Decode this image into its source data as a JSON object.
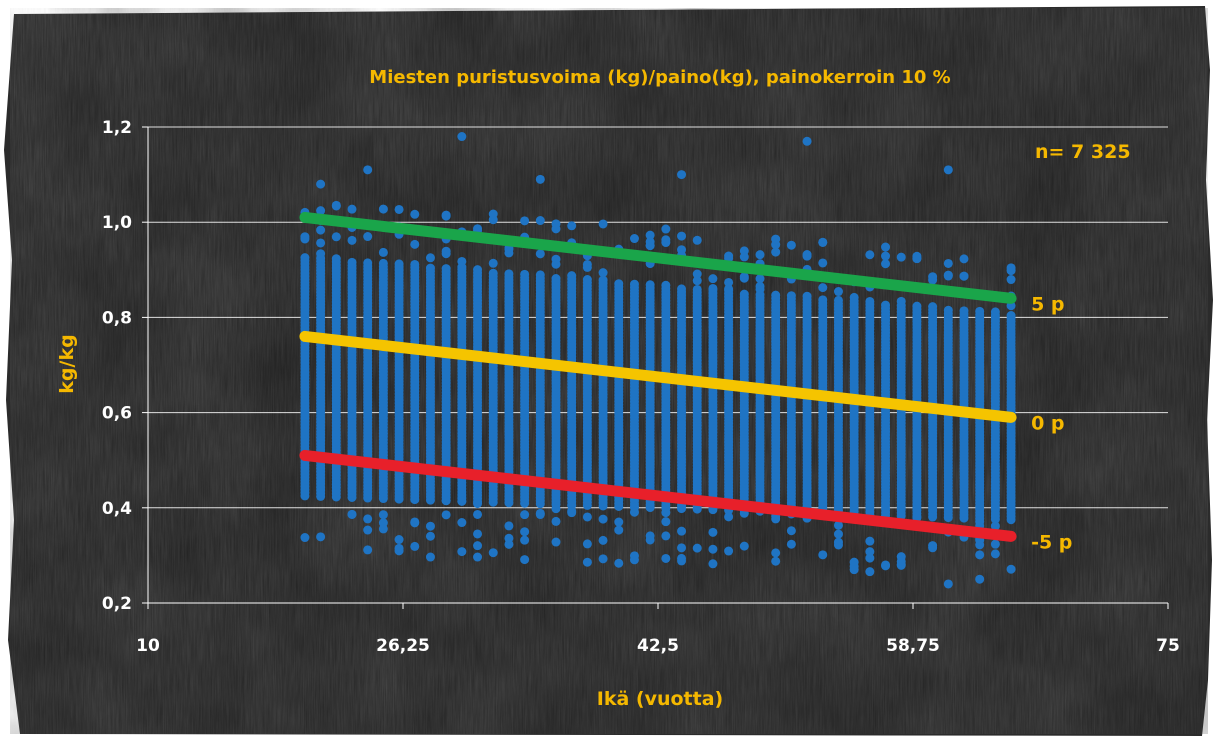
{
  "colors": {
    "background": "#2b2b2b",
    "text_accent": "#f5b800",
    "axis_tick_text": "#ffffff",
    "points": "#1f74c4",
    "line_plus5": "#1aa54a",
    "line_zero": "#f5c400",
    "line_minus5": "#e8202a",
    "grid": "#ffffff"
  },
  "chart_data": {
    "type": "scatter",
    "title": "Miesten puristusvoima (kg)/paino(kg), painokerroin 10 %",
    "xlabel": "Ikä (vuotta)",
    "ylabel": "kg/kg",
    "xlim": [
      10,
      75
    ],
    "ylim": [
      0.2,
      1.2
    ],
    "x_ticks": [
      "10",
      "26,25",
      "42,5",
      "58,75",
      "75"
    ],
    "y_ticks": [
      "0,2",
      "0,4",
      "0,6",
      "0,8",
      "1,0",
      "1,2"
    ],
    "grid": true,
    "annotation": "n= 7 325",
    "scatter_points": {
      "x_range": [
        20,
        65
      ],
      "x_step": 1,
      "band_approx": "each integer age has a dense vertical column of points from about 0.42–0.93 kg/kg at age 20 down to about 0.35–0.80 kg/kg at age 65, with scattered outliers between roughly 0.24 and 1.18",
      "notable_outliers": [
        {
          "x": 30,
          "y": 1.18
        },
        {
          "x": 52,
          "y": 1.17
        },
        {
          "x": 61,
          "y": 1.11
        },
        {
          "x": 21,
          "y": 1.08
        },
        {
          "x": 24,
          "y": 1.11
        },
        {
          "x": 35,
          "y": 1.09
        },
        {
          "x": 44,
          "y": 1.1
        },
        {
          "x": 61,
          "y": 0.24
        },
        {
          "x": 63,
          "y": 0.25
        },
        {
          "x": 55,
          "y": 0.27
        }
      ]
    },
    "series": [
      {
        "name": "5 p",
        "x": [
          20,
          65
        ],
        "y": [
          1.01,
          0.84
        ]
      },
      {
        "name": "0 p",
        "x": [
          20,
          65
        ],
        "y": [
          0.76,
          0.59
        ]
      },
      {
        "name": "-5 p",
        "x": [
          20,
          65
        ],
        "y": [
          0.51,
          0.34
        ]
      }
    ]
  }
}
